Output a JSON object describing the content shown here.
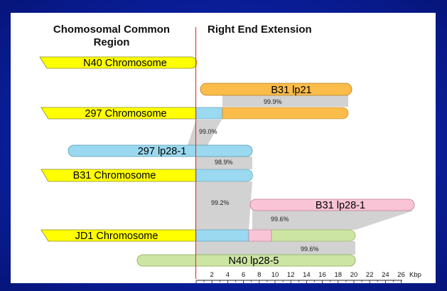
{
  "header": {
    "left_line1": "Chomosomal Common",
    "left_line2": "Region",
    "right": "Right End Extension"
  },
  "bars": {
    "n40_chromosome": "N40 Chromosome",
    "b31_lp21": "B31 lp21",
    "chr297": "297 Chromosome",
    "lp28_1_297": "297 lp28-1",
    "b31_chromosome": "B31 Chromosome",
    "b31_lp28_1": "B31 lp28-1",
    "jd1_chromosome": "JD1 Chromosome",
    "n40_lp28_5": "N40 lp28-5"
  },
  "identities": {
    "b31lp21_297": "99.9%",
    "chr297_lp28": "99.0%",
    "lp28_b31": "98.9%",
    "b31_jd1": "99.2%",
    "b31lp28_jd1": "99.6%",
    "jd1_n40": "99.6%"
  },
  "axis": {
    "unit": "Kbp",
    "ticks": [
      "2",
      "4",
      "6",
      "8",
      "10",
      "12",
      "14",
      "16",
      "18",
      "20",
      "22",
      "24",
      "26"
    ]
  },
  "colors": {
    "chromosome": "#ffff00",
    "blue": "#9ad9f0",
    "orange": "#fbbc4a",
    "pink": "#f9c4d6",
    "green": "#cde5a3",
    "connector": "#cfcfcf",
    "boundary": "#e53a3a",
    "background": "#0b1f9e"
  }
}
